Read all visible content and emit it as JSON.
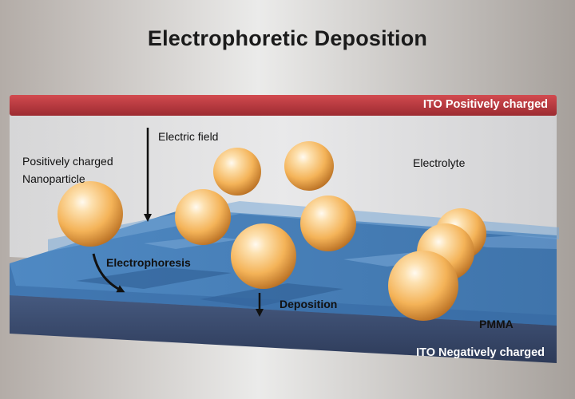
{
  "title": "Electrophoretic Deposition",
  "labels": {
    "ito_positive": "ITO Positively charged",
    "ito_negative": "ITO Negatively charged",
    "electric_field": "Electric field",
    "nanoparticle_line1": "Positively charged",
    "nanoparticle_line2": "Nanoparticle",
    "electrolyte": "Electrolyte",
    "electrophoresis": "Electrophoresis",
    "deposition": "Deposition",
    "pmma": "PMMA"
  },
  "colors": {
    "ito_positive": "#b8343a",
    "ito_negative": "#3a4a6e",
    "pmma": "#4a82bb",
    "nanoparticle": "#f3b257",
    "electrolyte": "#d7d7d8"
  }
}
